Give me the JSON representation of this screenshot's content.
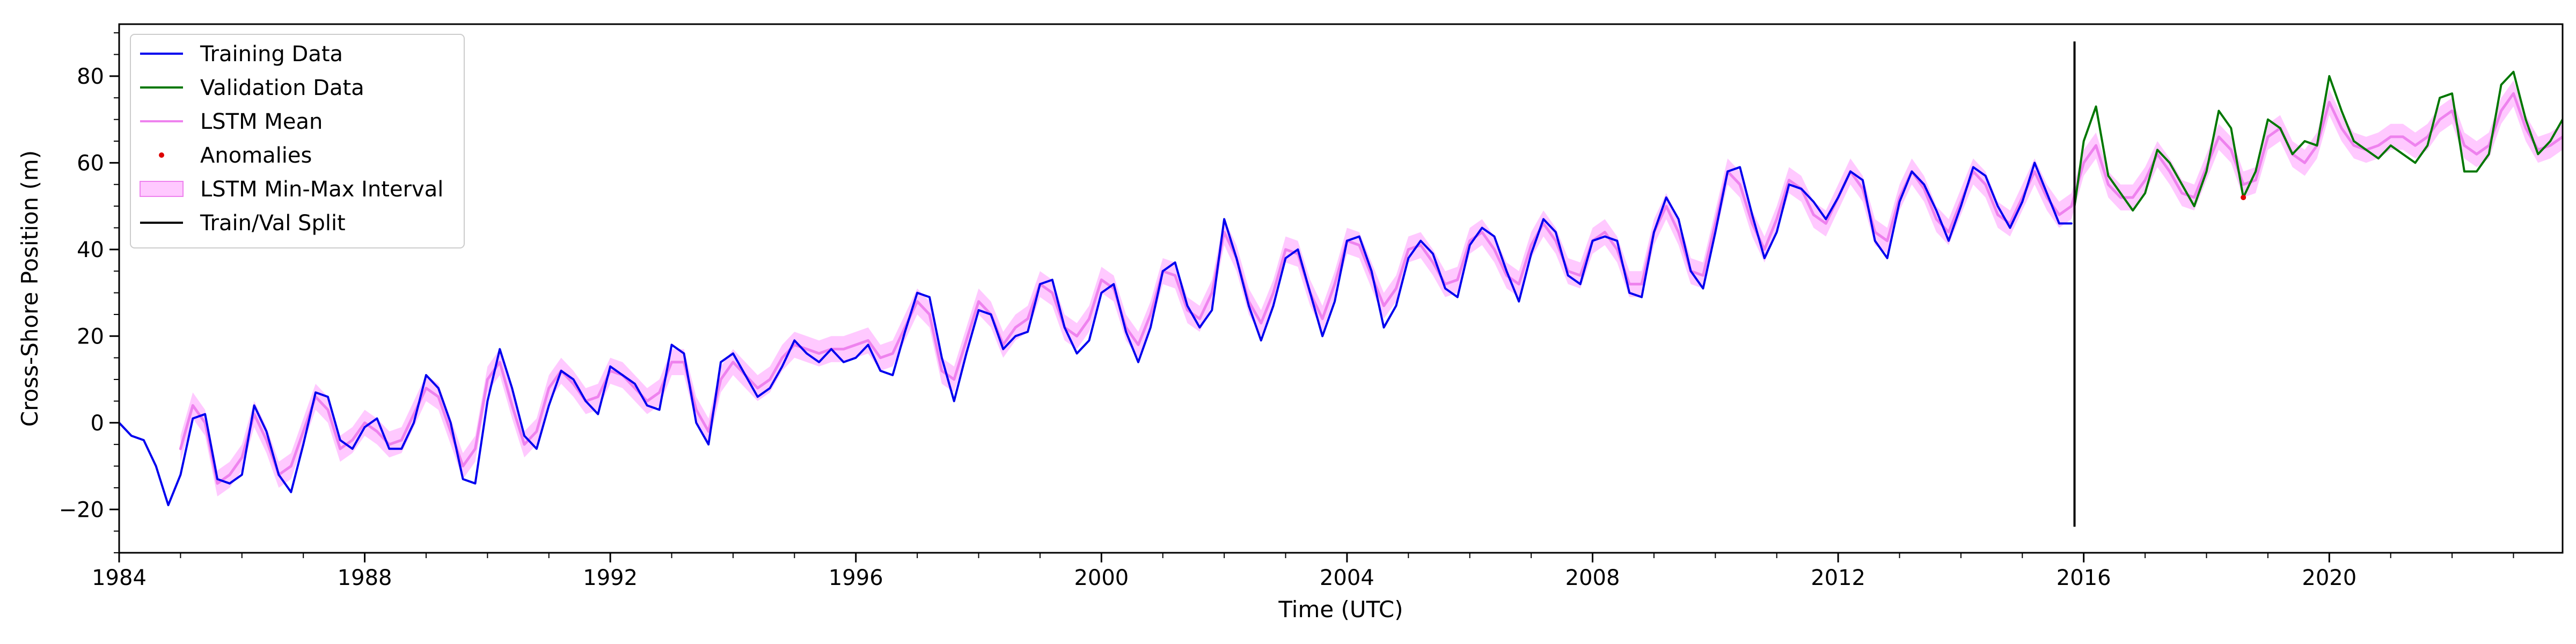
{
  "chart_data": {
    "type": "line",
    "xlabel": "Time (UTC)",
    "ylabel": "Cross-Shore Position (m)",
    "xlim": [
      1984.0,
      2023.8
    ],
    "ylim": [
      -30,
      92
    ],
    "x_ticks": [
      1984,
      1988,
      1992,
      1996,
      2000,
      2004,
      2008,
      2012,
      2016,
      2020
    ],
    "x_tick_labels": [
      "1984",
      "1988",
      "1992",
      "1996",
      "2000",
      "2004",
      "2008",
      "2012",
      "2016",
      "2020"
    ],
    "y_ticks": [
      -20,
      0,
      20,
      40,
      60,
      80
    ],
    "y_tick_labels": [
      "−20",
      "0",
      "20",
      "40",
      "60",
      "80"
    ],
    "legend_position": "top-left",
    "train_val_split": 2015.85,
    "split_line_range": [
      -24,
      88
    ],
    "colors": {
      "training": "#0000ee",
      "validation": "#007700",
      "lstm_mean": "#ee82ee",
      "lstm_band": "#ff88ff",
      "anomalies": "#dd0000",
      "split": "#000000"
    },
    "series": [
      {
        "name": "Training Data",
        "x": [
          1984.0,
          1984.2,
          1984.4,
          1984.6,
          1984.8,
          1985.0,
          1985.2,
          1985.4,
          1985.6,
          1985.8,
          1986.0,
          1986.2,
          1986.4,
          1986.6,
          1986.8,
          1987.0,
          1987.2,
          1987.4,
          1987.6,
          1987.8,
          1988.0,
          1988.2,
          1988.4,
          1988.6,
          1988.8,
          1989.0,
          1989.2,
          1989.4,
          1989.6,
          1989.8,
          1990.0,
          1990.2,
          1990.4,
          1990.6,
          1990.8,
          1991.0,
          1991.2,
          1991.4,
          1991.6,
          1991.8,
          1992.0,
          1992.2,
          1992.4,
          1992.6,
          1992.8,
          1993.0,
          1993.2,
          1993.4,
          1993.6,
          1993.8,
          1994.0,
          1994.2,
          1994.4,
          1994.6,
          1994.8,
          1995.0,
          1995.2,
          1995.4,
          1995.6,
          1995.8,
          1996.0,
          1996.2,
          1996.4,
          1996.6,
          1996.8,
          1997.0,
          1997.2,
          1997.4,
          1997.6,
          1997.8,
          1998.0,
          1998.2,
          1998.4,
          1998.6,
          1998.8,
          1999.0,
          1999.2,
          1999.4,
          1999.6,
          1999.8,
          2000.0,
          2000.2,
          2000.4,
          2000.6,
          2000.8,
          2001.0,
          2001.2,
          2001.4,
          2001.6,
          2001.8,
          2002.0,
          2002.2,
          2002.4,
          2002.6,
          2002.8,
          2003.0,
          2003.2,
          2003.4,
          2003.6,
          2003.8,
          2004.0,
          2004.2,
          2004.4,
          2004.6,
          2004.8,
          2005.0,
          2005.2,
          2005.4,
          2005.6,
          2005.8,
          2006.0,
          2006.2,
          2006.4,
          2006.6,
          2006.8,
          2007.0,
          2007.2,
          2007.4,
          2007.6,
          2007.8,
          2008.0,
          2008.2,
          2008.4,
          2008.6,
          2008.8,
          2009.0,
          2009.2,
          2009.4,
          2009.6,
          2009.8,
          2010.0,
          2010.2,
          2010.4,
          2010.6,
          2010.8,
          2011.0,
          2011.2,
          2011.4,
          2011.6,
          2011.8,
          2012.0,
          2012.2,
          2012.4,
          2012.6,
          2012.8,
          2013.0,
          2013.2,
          2013.4,
          2013.6,
          2013.8,
          2014.0,
          2014.2,
          2014.4,
          2014.6,
          2014.8,
          2015.0,
          2015.2,
          2015.4,
          2015.6,
          2015.8
        ],
        "values": [
          0,
          -3,
          -4,
          -10,
          -19,
          -12,
          1,
          2,
          -13,
          -14,
          -12,
          4,
          -2,
          -12,
          -16,
          -5,
          7,
          6,
          -4,
          -6,
          -1,
          1,
          -6,
          -6,
          0,
          11,
          8,
          0,
          -13,
          -14,
          5,
          17,
          8,
          -3,
          -6,
          4,
          12,
          10,
          5,
          2,
          13,
          11,
          9,
          4,
          3,
          18,
          16,
          0,
          -5,
          14,
          16,
          11,
          6,
          8,
          13,
          19,
          16,
          14,
          17,
          14,
          15,
          18,
          12,
          11,
          21,
          30,
          29,
          15,
          5,
          16,
          26,
          25,
          17,
          20,
          21,
          32,
          33,
          22,
          16,
          19,
          30,
          32,
          21,
          14,
          22,
          35,
          37,
          27,
          22,
          26,
          47,
          38,
          27,
          19,
          27,
          38,
          40,
          30,
          20,
          28,
          42,
          43,
          35,
          22,
          27,
          38,
          42,
          39,
          31,
          29,
          41,
          45,
          43,
          35,
          28,
          39,
          47,
          44,
          34,
          32,
          42,
          43,
          42,
          30,
          29,
          44,
          52,
          47,
          35,
          31,
          44,
          58,
          59,
          48,
          38,
          44,
          55,
          54,
          51,
          47,
          52,
          58,
          56,
          42,
          38,
          51,
          58,
          55,
          49,
          42,
          50,
          59,
          57,
          50,
          45,
          51,
          60,
          53,
          46,
          46
        ]
      },
      {
        "name": "Validation Data",
        "x": [
          2015.85,
          2016.0,
          2016.2,
          2016.4,
          2016.6,
          2016.8,
          2017.0,
          2017.2,
          2017.4,
          2017.6,
          2017.8,
          2018.0,
          2018.2,
          2018.4,
          2018.6,
          2018.8,
          2019.0,
          2019.2,
          2019.4,
          2019.6,
          2019.8,
          2020.0,
          2020.2,
          2020.4,
          2020.6,
          2020.8,
          2021.0,
          2021.2,
          2021.4,
          2021.6,
          2021.8,
          2022.0,
          2022.2,
          2022.4,
          2022.6,
          2022.8,
          2023.0,
          2023.2,
          2023.4,
          2023.6,
          2023.8
        ],
        "values": [
          50,
          65,
          73,
          57,
          53,
          49,
          53,
          63,
          60,
          55,
          50,
          58,
          72,
          68,
          52,
          58,
          70,
          68,
          62,
          65,
          64,
          80,
          72,
          65,
          63,
          61,
          64,
          62,
          60,
          64,
          75,
          76,
          58,
          58,
          62,
          78,
          81,
          70,
          62,
          65,
          70
        ]
      },
      {
        "name": "LSTM Mean",
        "x": [
          1985.0,
          1985.2,
          1985.4,
          1985.6,
          1985.8,
          1986.0,
          1986.2,
          1986.4,
          1986.6,
          1986.8,
          1987.0,
          1987.2,
          1987.4,
          1987.6,
          1987.8,
          1988.0,
          1988.2,
          1988.4,
          1988.6,
          1988.8,
          1989.0,
          1989.2,
          1989.4,
          1989.6,
          1989.8,
          1990.0,
          1990.2,
          1990.4,
          1990.6,
          1990.8,
          1991.0,
          1991.2,
          1991.4,
          1991.6,
          1991.8,
          1992.0,
          1992.2,
          1992.4,
          1992.6,
          1992.8,
          1993.0,
          1993.2,
          1993.4,
          1993.6,
          1993.8,
          1994.0,
          1994.2,
          1994.4,
          1994.6,
          1994.8,
          1995.0,
          1995.2,
          1995.4,
          1995.6,
          1995.8,
          1996.0,
          1996.2,
          1996.4,
          1996.6,
          1996.8,
          1997.0,
          1997.2,
          1997.4,
          1997.6,
          1997.8,
          1998.0,
          1998.2,
          1998.4,
          1998.6,
          1998.8,
          1999.0,
          1999.2,
          1999.4,
          1999.6,
          1999.8,
          2000.0,
          2000.2,
          2000.4,
          2000.6,
          2000.8,
          2001.0,
          2001.2,
          2001.4,
          2001.6,
          2001.8,
          2002.0,
          2002.2,
          2002.4,
          2002.6,
          2002.8,
          2003.0,
          2003.2,
          2003.4,
          2003.6,
          2003.8,
          2004.0,
          2004.2,
          2004.4,
          2004.6,
          2004.8,
          2005.0,
          2005.2,
          2005.4,
          2005.6,
          2005.8,
          2006.0,
          2006.2,
          2006.4,
          2006.6,
          2006.8,
          2007.0,
          2007.2,
          2007.4,
          2007.6,
          2007.8,
          2008.0,
          2008.2,
          2008.4,
          2008.6,
          2008.8,
          2009.0,
          2009.2,
          2009.4,
          2009.6,
          2009.8,
          2010.0,
          2010.2,
          2010.4,
          2010.6,
          2010.8,
          2011.0,
          2011.2,
          2011.4,
          2011.6,
          2011.8,
          2012.0,
          2012.2,
          2012.4,
          2012.6,
          2012.8,
          2013.0,
          2013.2,
          2013.4,
          2013.6,
          2013.8,
          2014.0,
          2014.2,
          2014.4,
          2014.6,
          2014.8,
          2015.0,
          2015.2,
          2015.4,
          2015.6,
          2015.8,
          2016.0,
          2016.2,
          2016.4,
          2016.6,
          2016.8,
          2017.0,
          2017.2,
          2017.4,
          2017.6,
          2017.8,
          2018.0,
          2018.2,
          2018.4,
          2018.6,
          2018.8,
          2019.0,
          2019.2,
          2019.4,
          2019.6,
          2019.8,
          2020.0,
          2020.2,
          2020.4,
          2020.6,
          2020.8,
          2021.0,
          2021.2,
          2021.4,
          2021.6,
          2021.8,
          2022.0,
          2022.2,
          2022.4,
          2022.6,
          2022.8,
          2023.0,
          2023.2,
          2023.4,
          2023.6,
          2023.8
        ],
        "values": [
          -6,
          4,
          0,
          -14,
          -12,
          -8,
          2,
          -4,
          -12,
          -10,
          -2,
          6,
          3,
          -6,
          -4,
          0,
          -2,
          -5,
          -4,
          2,
          8,
          6,
          -2,
          -10,
          -6,
          10,
          14,
          4,
          -5,
          -2,
          8,
          12,
          9,
          5,
          6,
          12,
          11,
          8,
          5,
          7,
          14,
          14,
          3,
          -2,
          10,
          14,
          11,
          8,
          10,
          15,
          18,
          17,
          16,
          17,
          17,
          18,
          19,
          15,
          16,
          22,
          28,
          25,
          12,
          10,
          19,
          28,
          25,
          18,
          22,
          24,
          32,
          30,
          22,
          20,
          24,
          33,
          31,
          22,
          18,
          25,
          35,
          34,
          26,
          24,
          30,
          44,
          38,
          28,
          23,
          30,
          40,
          39,
          30,
          24,
          32,
          42,
          41,
          34,
          27,
          31,
          40,
          41,
          37,
          32,
          33,
          42,
          44,
          40,
          34,
          32,
          41,
          46,
          42,
          35,
          34,
          42,
          44,
          40,
          32,
          32,
          44,
          50,
          44,
          35,
          34,
          46,
          58,
          55,
          46,
          40,
          47,
          56,
          54,
          48,
          46,
          52,
          58,
          54,
          44,
          42,
          52,
          58,
          54,
          47,
          44,
          51,
          58,
          55,
          48,
          46,
          52,
          58,
          52,
          48,
          50,
          60,
          64,
          55,
          52,
          52,
          56,
          62,
          58,
          53,
          52,
          59,
          66,
          63,
          55,
          56,
          66,
          68,
          62,
          60,
          64,
          74,
          68,
          64,
          63,
          64,
          66,
          66,
          64,
          66,
          70,
          72,
          64,
          62,
          64,
          72,
          76,
          68,
          63,
          64,
          66
        ]
      }
    ],
    "lstm_band_halfwidth": 3,
    "anomalies": {
      "name": "Anomalies",
      "x": [
        2018.6
      ],
      "y": [
        52
      ]
    },
    "legend": [
      {
        "key": "training",
        "label": "Training Data",
        "kind": "line"
      },
      {
        "key": "validation",
        "label": "Validation Data",
        "kind": "line"
      },
      {
        "key": "lstm_mean",
        "label": "LSTM Mean",
        "kind": "line"
      },
      {
        "key": "anomalies",
        "label": "Anomalies",
        "kind": "dot"
      },
      {
        "key": "lstm_band",
        "label": "LSTM Min-Max Interval",
        "kind": "patch"
      },
      {
        "key": "split",
        "label": "Train/Val Split",
        "kind": "line"
      }
    ]
  }
}
